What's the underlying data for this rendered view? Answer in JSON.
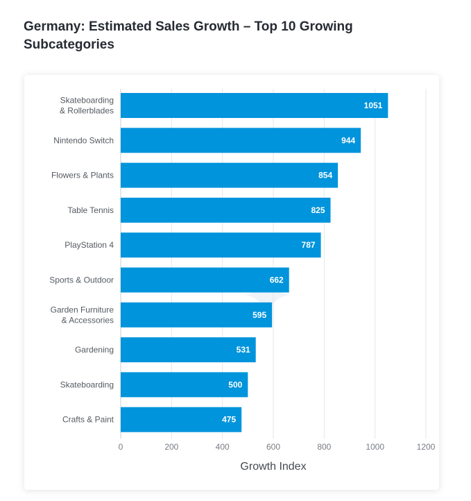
{
  "page": {
    "title": "Germany: Estimated Sales Growth – Top 10 Growing Subcategories"
  },
  "chart_data": {
    "type": "bar",
    "orientation": "horizontal",
    "title": "Germany: Estimated Sales Growth – Top 10 Growing Subcategories",
    "xlabel": "Growth Index",
    "ylabel": "",
    "categories": [
      "Skateboarding & Rollerblades",
      "Nintendo Switch",
      "Flowers & Plants",
      "Table Tennis",
      "PlayStation 4",
      "Sports & Outdoor",
      "Garden Furniture & Accessories",
      "Gardening",
      "Skateboarding",
      "Crafts & Paint"
    ],
    "category_lines": [
      [
        "Skateboarding",
        "& Rollerblades"
      ],
      [
        "Nintendo Switch"
      ],
      [
        "Flowers & Plants"
      ],
      [
        "Table Tennis"
      ],
      [
        "PlayStation 4"
      ],
      [
        "Sports & Outdoor"
      ],
      [
        "Garden Furniture",
        "& Accessories"
      ],
      [
        "Gardening"
      ],
      [
        "Skateboarding"
      ],
      [
        "Crafts & Paint"
      ]
    ],
    "values": [
      1051,
      944,
      854,
      825,
      787,
      662,
      595,
      531,
      500,
      475
    ],
    "xlim": [
      0,
      1200
    ],
    "xticks": [
      0,
      200,
      400,
      600,
      800,
      1000,
      1200
    ],
    "grid": true,
    "legend": "none",
    "bar_color": "#0094dc",
    "grid_color": "#e3e6ea"
  }
}
